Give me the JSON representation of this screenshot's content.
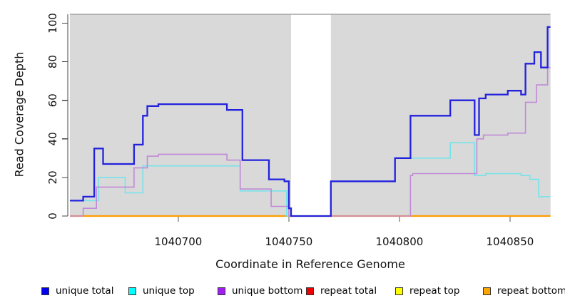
{
  "figure": {
    "xlabel": "Coordinate in Reference Genome",
    "ylabel": "Read Coverage Depth"
  },
  "chart_data": {
    "type": "line",
    "subtype": "step-coverage-plot",
    "title": "",
    "xlabel": "Coordinate in Reference Genome",
    "ylabel": "Read Coverage Depth",
    "x_range": [
      1040651,
      1040868
    ],
    "y_range": [
      0,
      100
    ],
    "x_ticks": [
      1040700,
      1040750,
      1040800,
      1040850
    ],
    "y_ticks": [
      0,
      20,
      40,
      60,
      80,
      100
    ],
    "grid": false,
    "panel_bg": "#d9d9d9",
    "no_data_gap": {
      "from": 1040751,
      "to": 1040769,
      "bg": "#ffffff"
    },
    "legend_position": "bottom",
    "legend": [
      {
        "label": "unique total",
        "swatch": "#0000ee"
      },
      {
        "label": "unique top",
        "swatch": "#00ffff"
      },
      {
        "label": "unique bottom",
        "swatch": "#a020f0"
      },
      {
        "label": "repeat total",
        "swatch": "#ee0000"
      },
      {
        "label": "repeat top",
        "swatch": "#ffff00"
      },
      {
        "label": "repeat bottom",
        "swatch": "#ffa500"
      }
    ],
    "series": [
      {
        "name": "repeat total",
        "color": "#dd2222",
        "line_width": 1.6,
        "points": [
          [
            1040651,
            0
          ]
        ]
      },
      {
        "name": "repeat top",
        "color": "#f5e800",
        "line_width": 1.6,
        "points": [
          [
            1040651,
            0
          ]
        ]
      },
      {
        "name": "repeat bottom",
        "color": "#ff9d00",
        "line_width": 2.2,
        "points": [
          [
            1040651,
            0
          ]
        ]
      },
      {
        "name": "unique top",
        "color": "#74e4ea",
        "line_width": 1.6,
        "points": [
          [
            1040651,
            8
          ],
          [
            1040664,
            20
          ],
          [
            1040676,
            12
          ],
          [
            1040684,
            26
          ],
          [
            1040728,
            13
          ],
          [
            1040749,
            0
          ],
          [
            1040769,
            18
          ],
          [
            1040798,
            30
          ],
          [
            1040823,
            38
          ],
          [
            1040834,
            21
          ],
          [
            1040839,
            22
          ],
          [
            1040855,
            21
          ],
          [
            1040859,
            19
          ],
          [
            1040863,
            10
          ]
        ]
      },
      {
        "name": "unique bottom",
        "color": "#c08ad6",
        "line_width": 1.6,
        "points": [
          [
            1040651,
            0
          ],
          [
            1040657,
            4
          ],
          [
            1040663,
            15
          ],
          [
            1040680,
            25
          ],
          [
            1040686,
            31
          ],
          [
            1040691,
            32
          ],
          [
            1040722,
            29
          ],
          [
            1040728,
            14
          ],
          [
            1040742,
            5
          ],
          [
            1040750,
            0
          ],
          [
            1040805,
            21
          ],
          [
            1040806,
            22
          ],
          [
            1040835,
            40
          ],
          [
            1040838,
            42
          ],
          [
            1040849,
            43
          ],
          [
            1040857,
            59
          ],
          [
            1040862,
            68
          ],
          [
            1040867,
            77
          ]
        ]
      },
      {
        "name": "unique total",
        "color": "#2222dd",
        "line_width": 2.3,
        "points": [
          [
            1040651,
            8
          ],
          [
            1040657,
            10
          ],
          [
            1040662,
            35
          ],
          [
            1040666,
            27
          ],
          [
            1040680,
            37
          ],
          [
            1040684,
            52
          ],
          [
            1040686,
            57
          ],
          [
            1040691,
            58
          ],
          [
            1040722,
            55
          ],
          [
            1040729,
            29
          ],
          [
            1040741,
            19
          ],
          [
            1040748,
            18
          ],
          [
            1040750,
            4
          ],
          [
            1040751,
            0
          ],
          [
            1040769,
            18
          ],
          [
            1040798,
            30
          ],
          [
            1040805,
            52
          ],
          [
            1040823,
            60
          ],
          [
            1040834,
            42
          ],
          [
            1040836,
            61
          ],
          [
            1040839,
            63
          ],
          [
            1040849,
            65
          ],
          [
            1040855,
            63
          ],
          [
            1040857,
            79
          ],
          [
            1040861,
            85
          ],
          [
            1040864,
            77
          ],
          [
            1040867,
            98
          ]
        ]
      }
    ]
  }
}
